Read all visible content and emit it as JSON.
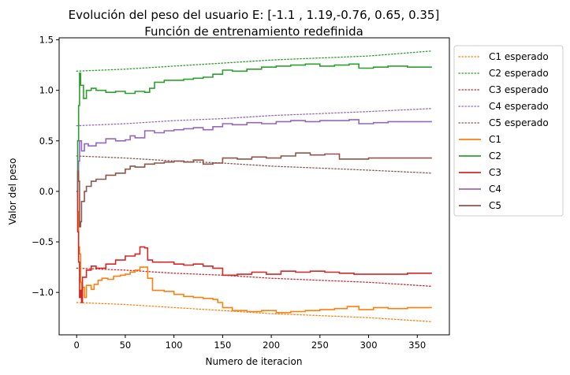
{
  "chart_data": {
    "type": "line",
    "title": "Evolución del peso del usuario E: [-1.1 , 1.19,-0.76, 0.65, 0.35]",
    "subtitle": "Función de entrenamiento redefinida",
    "xlabel": "Numero de iteracion",
    "ylabel": "Valor del peso",
    "xlim": [
      -18,
      383
    ],
    "ylim": [
      -1.42,
      1.52
    ],
    "x_ticks": [
      0,
      50,
      100,
      150,
      200,
      250,
      300,
      350
    ],
    "y_ticks": [
      -1.0,
      -0.5,
      0.0,
      0.5,
      1.0,
      1.5
    ],
    "x_tick_labels": [
      "0",
      "50",
      "100",
      "150",
      "200",
      "250",
      "300",
      "350"
    ],
    "y_tick_labels": [
      "−1.0",
      "−0.5",
      "0.0",
      "0.5",
      "1.0",
      "1.5"
    ],
    "grid": false,
    "legend_position": "outside-right-top",
    "legend": [
      "C1 esperado",
      "C2 esperado",
      "C3 esperado",
      "C4 esperado",
      "C5 esperado",
      "C1",
      "C2",
      "C3",
      "C4",
      "C5"
    ],
    "colors": {
      "C1": "#ff7f0e",
      "C2": "#2ca02c",
      "C3": "#d62728",
      "C4": "#9467bd",
      "C5": "#8c564b"
    },
    "series": [
      {
        "name": "C1 esperado",
        "style": "dotted",
        "color": "#ff7f0e",
        "points": [
          [
            0,
            -1.1
          ],
          [
            50,
            -1.12
          ],
          [
            100,
            -1.15
          ],
          [
            150,
            -1.18
          ],
          [
            200,
            -1.21
          ],
          [
            250,
            -1.23
          ],
          [
            300,
            -1.25
          ],
          [
            365,
            -1.29
          ]
        ]
      },
      {
        "name": "C2 esperado",
        "style": "dotted",
        "color": "#2ca02c",
        "points": [
          [
            0,
            1.19
          ],
          [
            50,
            1.21
          ],
          [
            100,
            1.24
          ],
          [
            150,
            1.27
          ],
          [
            200,
            1.3
          ],
          [
            250,
            1.32
          ],
          [
            300,
            1.34
          ],
          [
            365,
            1.39
          ]
        ]
      },
      {
        "name": "C3 esperado",
        "style": "dotted",
        "color": "#d62728",
        "points": [
          [
            0,
            -0.76
          ],
          [
            50,
            -0.78
          ],
          [
            100,
            -0.81
          ],
          [
            150,
            -0.83
          ],
          [
            200,
            -0.86
          ],
          [
            250,
            -0.88
          ],
          [
            300,
            -0.9
          ],
          [
            365,
            -0.94
          ]
        ]
      },
      {
        "name": "C4 esperado",
        "style": "dotted",
        "color": "#9467bd",
        "points": [
          [
            0,
            0.65
          ],
          [
            50,
            0.67
          ],
          [
            100,
            0.7
          ],
          [
            150,
            0.72
          ],
          [
            200,
            0.75
          ],
          [
            250,
            0.77
          ],
          [
            300,
            0.79
          ],
          [
            365,
            0.82
          ]
        ]
      },
      {
        "name": "C5 esperado",
        "style": "dotted",
        "color": "#8c564b",
        "points": [
          [
            0,
            0.35
          ],
          [
            50,
            0.33
          ],
          [
            100,
            0.3
          ],
          [
            150,
            0.28
          ],
          [
            200,
            0.25
          ],
          [
            250,
            0.23
          ],
          [
            300,
            0.21
          ],
          [
            365,
            0.18
          ]
        ]
      },
      {
        "name": "C1",
        "style": "solid",
        "color": "#ff7f0e",
        "points": [
          [
            0,
            0.0
          ],
          [
            1,
            -0.2
          ],
          [
            2,
            -0.55
          ],
          [
            3,
            -0.62
          ],
          [
            4,
            -0.9
          ],
          [
            5,
            -1.0
          ],
          [
            6,
            -0.95
          ],
          [
            8,
            -1.05
          ],
          [
            10,
            -0.93
          ],
          [
            15,
            -0.97
          ],
          [
            18,
            -0.92
          ],
          [
            22,
            -0.88
          ],
          [
            26,
            -0.86
          ],
          [
            32,
            -0.87
          ],
          [
            38,
            -0.84
          ],
          [
            45,
            -0.83
          ],
          [
            50,
            -0.82
          ],
          [
            55,
            -0.8
          ],
          [
            60,
            -0.78
          ],
          [
            65,
            -0.75
          ],
          [
            70,
            -0.75
          ],
          [
            73,
            -0.86
          ],
          [
            78,
            -0.98
          ],
          [
            90,
            -0.99
          ],
          [
            100,
            -1.02
          ],
          [
            110,
            -1.04
          ],
          [
            120,
            -1.05
          ],
          [
            130,
            -1.06
          ],
          [
            140,
            -1.07
          ],
          [
            145,
            -1.1
          ],
          [
            150,
            -1.15
          ],
          [
            160,
            -1.18
          ],
          [
            175,
            -1.19
          ],
          [
            190,
            -1.18
          ],
          [
            205,
            -1.2
          ],
          [
            220,
            -1.19
          ],
          [
            235,
            -1.18
          ],
          [
            250,
            -1.17
          ],
          [
            265,
            -1.16
          ],
          [
            278,
            -1.14
          ],
          [
            290,
            -1.17
          ],
          [
            305,
            -1.15
          ],
          [
            320,
            -1.16
          ],
          [
            340,
            -1.15
          ],
          [
            365,
            -1.15
          ]
        ]
      },
      {
        "name": "C2",
        "style": "solid",
        "color": "#2ca02c",
        "points": [
          [
            0,
            0.0
          ],
          [
            1,
            0.5
          ],
          [
            2,
            0.85
          ],
          [
            3,
            1.17
          ],
          [
            4,
            1.05
          ],
          [
            5,
            1.05
          ],
          [
            7,
            0.92
          ],
          [
            10,
            1.0
          ],
          [
            15,
            1.02
          ],
          [
            20,
            1.0
          ],
          [
            30,
            0.98
          ],
          [
            40,
            0.99
          ],
          [
            50,
            0.97
          ],
          [
            60,
            0.99
          ],
          [
            70,
            0.98
          ],
          [
            75,
            1.02
          ],
          [
            80,
            1.08
          ],
          [
            90,
            1.1
          ],
          [
            100,
            1.1
          ],
          [
            110,
            1.11
          ],
          [
            120,
            1.12
          ],
          [
            130,
            1.13
          ],
          [
            140,
            1.16
          ],
          [
            150,
            1.2
          ],
          [
            160,
            1.19
          ],
          [
            175,
            1.21
          ],
          [
            190,
            1.23
          ],
          [
            205,
            1.24
          ],
          [
            220,
            1.25
          ],
          [
            235,
            1.26
          ],
          [
            250,
            1.24
          ],
          [
            265,
            1.25
          ],
          [
            280,
            1.26
          ],
          [
            290,
            1.22
          ],
          [
            305,
            1.23
          ],
          [
            320,
            1.24
          ],
          [
            340,
            1.23
          ],
          [
            365,
            1.23
          ]
        ]
      },
      {
        "name": "C3",
        "style": "solid",
        "color": "#d62728",
        "points": [
          [
            0,
            0.0
          ],
          [
            1,
            -0.4
          ],
          [
            2,
            -0.7
          ],
          [
            3,
            -1.05
          ],
          [
            4,
            -0.98
          ],
          [
            5,
            -1.1
          ],
          [
            6,
            -0.85
          ],
          [
            10,
            -0.78
          ],
          [
            15,
            -0.74
          ],
          [
            20,
            -0.76
          ],
          [
            30,
            -0.72
          ],
          [
            40,
            -0.68
          ],
          [
            50,
            -0.64
          ],
          [
            60,
            -0.62
          ],
          [
            65,
            -0.55
          ],
          [
            70,
            -0.56
          ],
          [
            73,
            -0.68
          ],
          [
            78,
            -0.7
          ],
          [
            90,
            -0.7
          ],
          [
            100,
            -0.72
          ],
          [
            110,
            -0.73
          ],
          [
            120,
            -0.72
          ],
          [
            130,
            -0.74
          ],
          [
            140,
            -0.76
          ],
          [
            150,
            -0.83
          ],
          [
            165,
            -0.82
          ],
          [
            180,
            -0.8
          ],
          [
            195,
            -0.82
          ],
          [
            210,
            -0.79
          ],
          [
            225,
            -0.8
          ],
          [
            240,
            -0.79
          ],
          [
            255,
            -0.8
          ],
          [
            270,
            -0.81
          ],
          [
            285,
            -0.82
          ],
          [
            300,
            -0.82
          ],
          [
            320,
            -0.82
          ],
          [
            340,
            -0.81
          ],
          [
            365,
            -0.81
          ]
        ]
      },
      {
        "name": "C4",
        "style": "solid",
        "color": "#9467bd",
        "points": [
          [
            0,
            0.0
          ],
          [
            1,
            0.1
          ],
          [
            2,
            0.3
          ],
          [
            3,
            0.5
          ],
          [
            5,
            0.4
          ],
          [
            8,
            0.47
          ],
          [
            12,
            0.45
          ],
          [
            20,
            0.48
          ],
          [
            30,
            0.52
          ],
          [
            40,
            0.5
          ],
          [
            50,
            0.51
          ],
          [
            55,
            0.55
          ],
          [
            60,
            0.53
          ],
          [
            70,
            0.6
          ],
          [
            80,
            0.58
          ],
          [
            90,
            0.6
          ],
          [
            100,
            0.61
          ],
          [
            110,
            0.62
          ],
          [
            120,
            0.63
          ],
          [
            130,
            0.61
          ],
          [
            140,
            0.64
          ],
          [
            150,
            0.67
          ],
          [
            160,
            0.66
          ],
          [
            175,
            0.68
          ],
          [
            190,
            0.67
          ],
          [
            205,
            0.69
          ],
          [
            220,
            0.7
          ],
          [
            235,
            0.69
          ],
          [
            250,
            0.7
          ],
          [
            265,
            0.7
          ],
          [
            280,
            0.71
          ],
          [
            290,
            0.67
          ],
          [
            305,
            0.68
          ],
          [
            320,
            0.69
          ],
          [
            340,
            0.69
          ],
          [
            365,
            0.69
          ]
        ]
      },
      {
        "name": "C5",
        "style": "solid",
        "color": "#8c564b",
        "points": [
          [
            0,
            0.0
          ],
          [
            1,
            0.2
          ],
          [
            2,
            0.1
          ],
          [
            3,
            -0.35
          ],
          [
            4,
            -0.3
          ],
          [
            5,
            -0.1
          ],
          [
            8,
            0.0
          ],
          [
            10,
            0.05
          ],
          [
            15,
            0.1
          ],
          [
            20,
            0.12
          ],
          [
            30,
            0.16
          ],
          [
            40,
            0.18
          ],
          [
            50,
            0.22
          ],
          [
            55,
            0.25
          ],
          [
            60,
            0.24
          ],
          [
            70,
            0.27
          ],
          [
            80,
            0.28
          ],
          [
            90,
            0.29
          ],
          [
            100,
            0.3
          ],
          [
            110,
            0.29
          ],
          [
            120,
            0.31
          ],
          [
            130,
            0.27
          ],
          [
            140,
            0.28
          ],
          [
            150,
            0.33
          ],
          [
            165,
            0.32
          ],
          [
            180,
            0.34
          ],
          [
            195,
            0.33
          ],
          [
            210,
            0.35
          ],
          [
            225,
            0.38
          ],
          [
            240,
            0.36
          ],
          [
            255,
            0.37
          ],
          [
            270,
            0.32
          ],
          [
            285,
            0.32
          ],
          [
            300,
            0.33
          ],
          [
            320,
            0.33
          ],
          [
            340,
            0.33
          ],
          [
            365,
            0.33
          ]
        ]
      }
    ]
  }
}
